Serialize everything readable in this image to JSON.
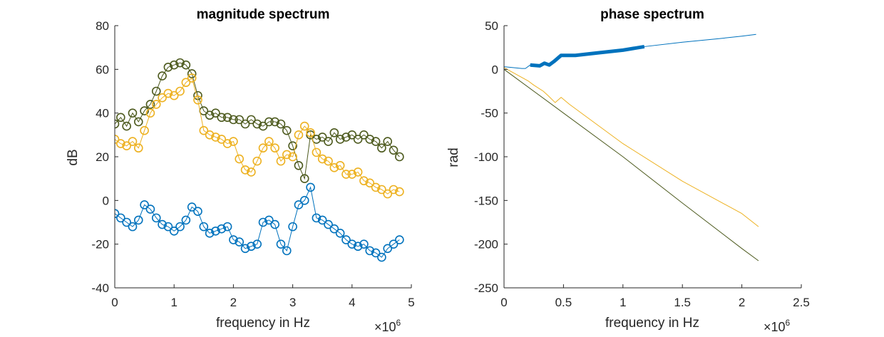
{
  "chart_data": [
    {
      "type": "scatter",
      "title": "magnitude spectrum",
      "xlabel": "frequency in Hz",
      "ylabel": "dB",
      "x_multiplier": "×10",
      "x_multiplier_exp": "6",
      "xlim": [
        0,
        5
      ],
      "ylim": [
        -40,
        80
      ],
      "xticks": [
        0,
        1,
        2,
        3,
        4,
        5
      ],
      "yticks": [
        -40,
        -20,
        0,
        20,
        40,
        60,
        80
      ],
      "grid": false,
      "x_note": "x values in units of 10^6 Hz",
      "series": [
        {
          "color": "#D95319",
          "display_color": "#4D5A1E",
          "x": [
            0.0,
            0.1,
            0.2,
            0.3,
            0.4,
            0.5,
            0.6,
            0.7,
            0.8,
            0.9,
            1.0,
            1.1,
            1.2,
            1.3,
            1.4,
            1.5,
            1.6,
            1.7,
            1.8,
            1.9,
            2.0,
            2.1,
            2.2,
            2.3,
            2.4,
            2.5,
            2.6,
            2.7,
            2.8,
            2.9,
            3.0,
            3.1,
            3.2,
            3.3,
            3.4,
            3.5,
            3.6,
            3.7,
            3.8,
            3.9,
            4.0,
            4.1,
            4.2,
            4.3,
            4.4,
            4.5,
            4.6,
            4.7,
            4.8
          ],
          "values": [
            35,
            38,
            34,
            40,
            36,
            41,
            44,
            50,
            57,
            61,
            62,
            63,
            62,
            58,
            48,
            41,
            39,
            40,
            38,
            38,
            37,
            37,
            35,
            37,
            35,
            34,
            36,
            36,
            35,
            32,
            25,
            16,
            10,
            30,
            28,
            29,
            27,
            31,
            28,
            29,
            30,
            28,
            30,
            28,
            27,
            24,
            27,
            23,
            20
          ]
        },
        {
          "color": "#EDB120",
          "display_color": "#EDB120",
          "x": [
            0.0,
            0.1,
            0.2,
            0.3,
            0.4,
            0.5,
            0.6,
            0.7,
            0.8,
            0.9,
            1.0,
            1.1,
            1.2,
            1.3,
            1.4,
            1.5,
            1.6,
            1.7,
            1.8,
            1.9,
            2.0,
            2.1,
            2.2,
            2.3,
            2.4,
            2.5,
            2.6,
            2.7,
            2.8,
            2.9,
            3.0,
            3.1,
            3.2,
            3.3,
            3.4,
            3.5,
            3.6,
            3.7,
            3.8,
            3.9,
            4.0,
            4.1,
            4.2,
            4.3,
            4.4,
            4.5,
            4.6,
            4.7,
            4.8
          ],
          "values": [
            28,
            26,
            25,
            27,
            24,
            32,
            40,
            44,
            47,
            49,
            48,
            50,
            54,
            56,
            46,
            32,
            30,
            29,
            28,
            26,
            27,
            19,
            14,
            13,
            18,
            24,
            27,
            24,
            18,
            21,
            20,
            30,
            34,
            31,
            22,
            19,
            18,
            15,
            16,
            12,
            12,
            13,
            9,
            8,
            6,
            5,
            3,
            5,
            4
          ]
        },
        {
          "color": "#0072BD",
          "display_color": "#0072BD",
          "x": [
            0.0,
            0.1,
            0.2,
            0.3,
            0.4,
            0.5,
            0.6,
            0.7,
            0.8,
            0.9,
            1.0,
            1.1,
            1.2,
            1.3,
            1.4,
            1.5,
            1.6,
            1.7,
            1.8,
            1.9,
            2.0,
            2.1,
            2.2,
            2.3,
            2.4,
            2.5,
            2.6,
            2.7,
            2.8,
            2.9,
            3.0,
            3.1,
            3.2,
            3.3,
            3.4,
            3.5,
            3.6,
            3.7,
            3.8,
            3.9,
            4.0,
            4.1,
            4.2,
            4.3,
            4.4,
            4.5,
            4.6,
            4.7,
            4.8
          ],
          "values": [
            -6,
            -8,
            -10,
            -12,
            -9,
            -2,
            -4,
            -8,
            -11,
            -12,
            -14,
            -12,
            -9,
            -3,
            -5,
            -12,
            -15,
            -14,
            -13,
            -12,
            -18,
            -19,
            -22,
            -21,
            -20,
            -10,
            -9,
            -11,
            -20,
            -23,
            -12,
            -2,
            0,
            6,
            -8,
            -9,
            -11,
            -13,
            -15,
            -18,
            -20,
            -21,
            -20,
            -23,
            -24,
            -26,
            -22,
            -20,
            -18
          ]
        }
      ]
    },
    {
      "type": "line",
      "title": "phase spectrum",
      "xlabel": "frequency in Hz",
      "ylabel": "rad",
      "x_multiplier": "×10",
      "x_multiplier_exp": "6",
      "xlim": [
        0,
        2.5
      ],
      "ylim": [
        -250,
        50
      ],
      "xticks": [
        0,
        0.5,
        1,
        1.5,
        2,
        2.5
      ],
      "yticks": [
        -250,
        -200,
        -150,
        -100,
        -50,
        0,
        50
      ],
      "grid": false,
      "x_note": "x values in units of 10^6 Hz",
      "series": [
        {
          "color": "#0072BD",
          "x": [
            0,
            0.15,
            0.18,
            0.22,
            0.3,
            0.34,
            0.38,
            0.42,
            0.48,
            0.6,
            0.8,
            1.0,
            1.18,
            1.5,
            1.8,
            2.0,
            2.12
          ],
          "values": [
            3,
            1,
            1,
            5,
            4,
            7,
            5,
            9,
            16,
            16,
            19,
            22,
            26,
            31,
            35,
            38,
            40
          ]
        },
        {
          "color": "#0072BD",
          "emphasis": "thick",
          "x": [
            0.22,
            0.3,
            0.34,
            0.38,
            0.42,
            0.48,
            0.6,
            0.8,
            1.0,
            1.18
          ],
          "values": [
            5,
            4,
            7,
            5,
            9,
            16,
            16,
            19,
            22,
            26
          ]
        },
        {
          "color": "#EDB120",
          "x": [
            0,
            0.2,
            0.25,
            0.33,
            0.37,
            0.43,
            0.48,
            0.55,
            1.0,
            1.5,
            2.0,
            2.14
          ],
          "values": [
            2,
            -13,
            -18,
            -25,
            -30,
            -38,
            -32,
            -40,
            -85,
            -128,
            -165,
            -180
          ]
        },
        {
          "color": "#4D5A1E",
          "x": [
            0,
            0.5,
            1.0,
            1.5,
            2.0,
            2.14
          ],
          "values": [
            0,
            -50,
            -100,
            -153,
            -205,
            -219
          ]
        }
      ]
    }
  ]
}
